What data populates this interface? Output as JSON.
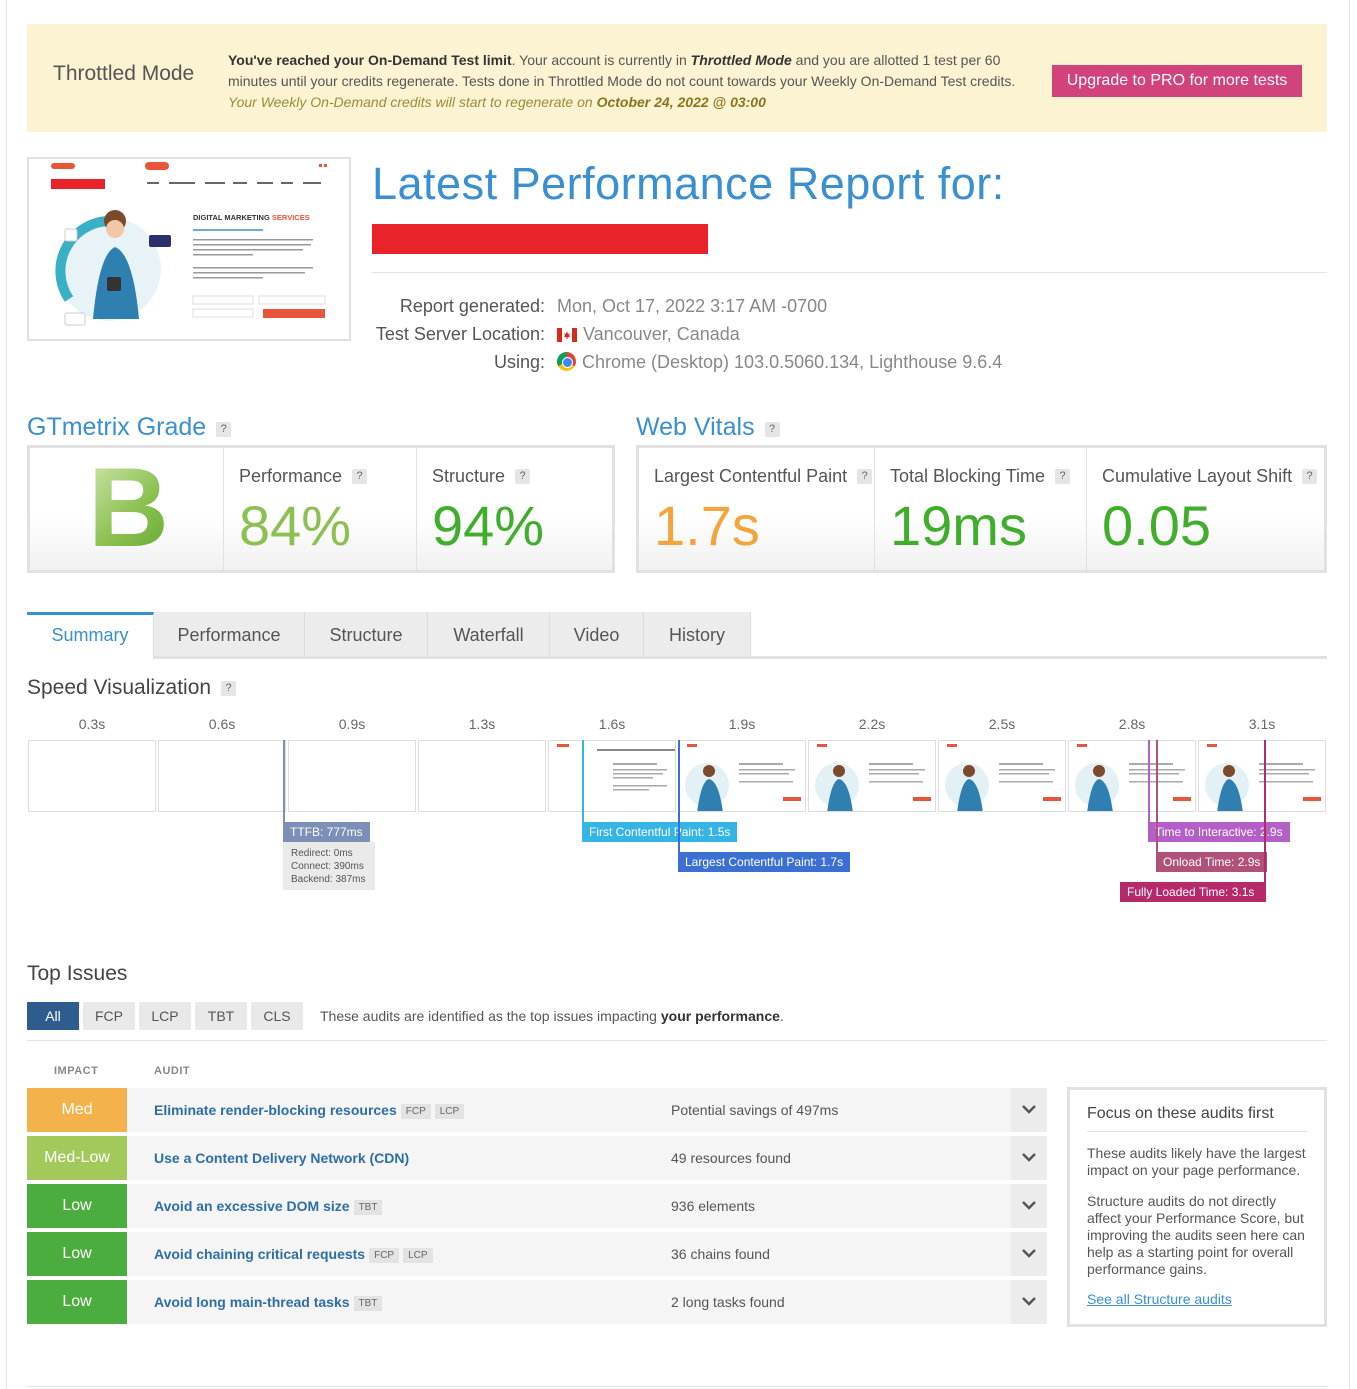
{
  "banner": {
    "title": "Throttled Mode",
    "line1_bold": "You've reached your On-Demand Test limit",
    "line1_a": ". Your account is currently in ",
    "line1_mode": "Throttled Mode",
    "line1_b": " and you are allotted 1 test per 60 minutes until your credits regenerate. Tests done in Throttled Mode do not count towards your Weekly On-Demand Test credits.",
    "regen_text": "Your Weekly On-Demand credits will start to regenerate on ",
    "regen_date": "October 24, 2022 @ 03:00",
    "upgrade_label": "Upgrade to PRO for more tests",
    "upgrade_color": "#d2427b"
  },
  "thumbnail": {
    "heading": "DIGITAL MARKETING",
    "heading_accent": "SERVICES"
  },
  "report": {
    "title": "Latest Performance Report for:",
    "generated_label": "Report generated:",
    "generated_value": "Mon, Oct 17, 2022 3:17 AM -0700",
    "location_label": "Test Server Location:",
    "location_value": "Vancouver, Canada",
    "using_label": "Using:",
    "using_value": "Chrome (Desktop) 103.0.5060.134, Lighthouse 9.6.4"
  },
  "grade": {
    "heading": "GTmetrix Grade",
    "letter": "B",
    "performance_label": "Performance",
    "performance_value": "84%",
    "structure_label": "Structure",
    "structure_value": "94%"
  },
  "vitals": {
    "heading": "Web Vitals",
    "lcp_label": "Largest Contentful Paint",
    "lcp_value": "1.7s",
    "tbt_label": "Total Blocking Time",
    "tbt_value": "19ms",
    "cls_label": "Cumulative Layout Shift",
    "cls_value": "0.05"
  },
  "help_mark": "?",
  "tabs": [
    "Summary",
    "Performance",
    "Structure",
    "Waterfall",
    "Video",
    "History"
  ],
  "speed": {
    "title": "Speed Visualization",
    "ticks": [
      "0.3s",
      "0.6s",
      "0.9s",
      "1.3s",
      "1.6s",
      "1.9s",
      "2.2s",
      "2.5s",
      "2.8s",
      "3.1s"
    ],
    "ttfb": "TTFB: 777ms",
    "redirect": "Redirect: 0ms",
    "connect": "Connect: 390ms",
    "backend": "Backend: 387ms",
    "fcp": "First Contentful Paint: 1.5s",
    "lcp": "Largest Contentful Paint: 1.7s",
    "tti": "Time to Interactive: 2.9s",
    "onload": "Onload Time: 2.9s",
    "fully": "Fully Loaded Time: 3.1s"
  },
  "issues": {
    "title": "Top Issues",
    "filters": [
      "All",
      "FCP",
      "LCP",
      "TBT",
      "CLS"
    ],
    "note_a": "These audits are identified as the top issues impacting ",
    "note_b": "your performance",
    "note_c": ".",
    "col_impact": "IMPACT",
    "col_audit": "AUDIT",
    "rows": [
      {
        "impact": "Med",
        "audit": "Eliminate render-blocking resources",
        "tags": [
          "FCP",
          "LCP"
        ],
        "result": "Potential savings of 497ms",
        "color": "#f3b24b"
      },
      {
        "impact": "Med-Low",
        "audit": "Use a Content Delivery Network (CDN)",
        "tags": [],
        "result": "49 resources found",
        "color": "#a3c95a"
      },
      {
        "impact": "Low",
        "audit": "Avoid an excessive DOM size",
        "tags": [
          "TBT"
        ],
        "result": "936 elements",
        "color": "#4cad3f"
      },
      {
        "impact": "Low",
        "audit": "Avoid chaining critical requests",
        "tags": [
          "FCP",
          "LCP"
        ],
        "result": "36 chains found",
        "color": "#4cad3f"
      },
      {
        "impact": "Low",
        "audit": "Avoid long main-thread tasks",
        "tags": [
          "TBT"
        ],
        "result": "2 long tasks found",
        "color": "#4cad3f"
      }
    ],
    "focus_title": "Focus on these audits first",
    "focus_p1": "These audits likely have the largest impact on your page performance.",
    "focus_p2": "Structure audits do not directly affect your Performance Score, but improving the audits seen here can help as a starting point for overall performance gains.",
    "focus_link": "See all Structure audits"
  }
}
